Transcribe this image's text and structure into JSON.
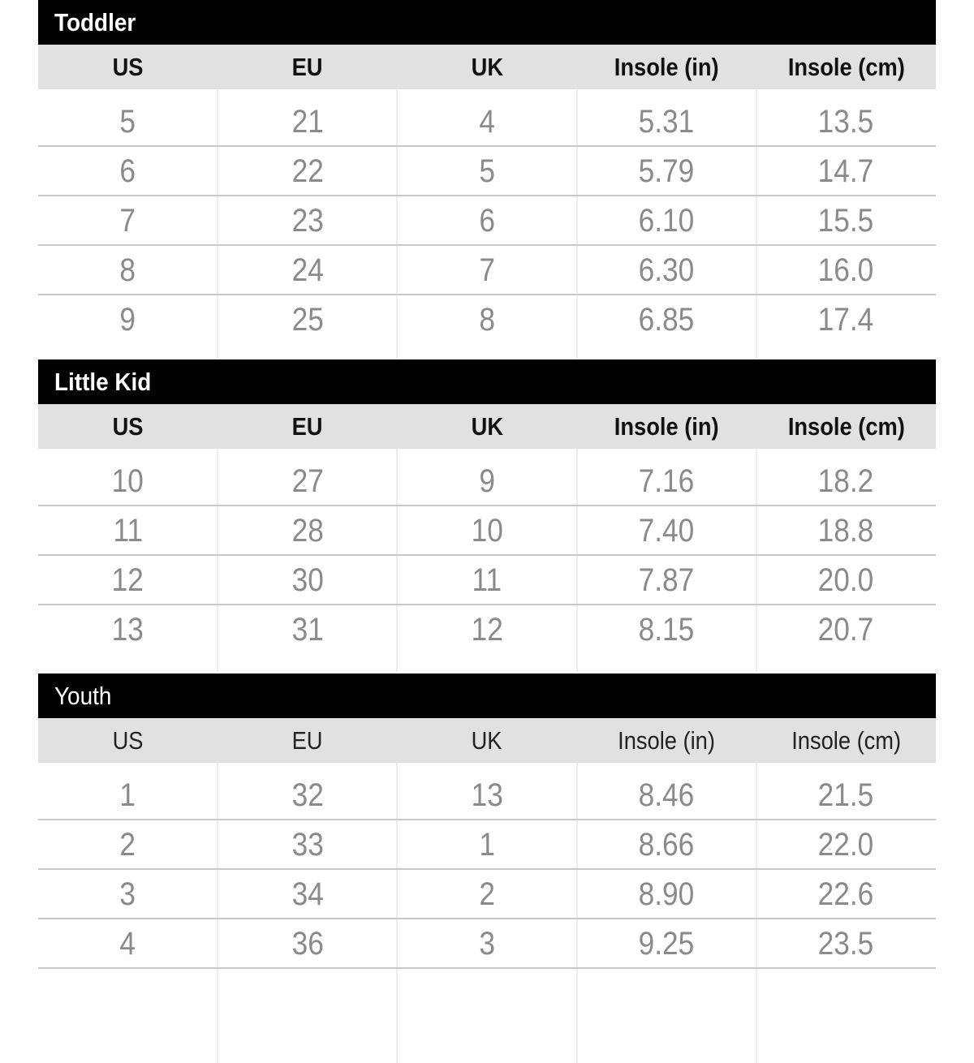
{
  "columns": [
    "US",
    "EU",
    "UK",
    "Insole (in)",
    "Insole (cm)"
  ],
  "sections": [
    {
      "title": "Toddler",
      "rows": [
        [
          "5",
          "21",
          "4",
          "5.31",
          "13.5"
        ],
        [
          "6",
          "22",
          "5",
          "5.79",
          "14.7"
        ],
        [
          "7",
          "23",
          "6",
          "6.10",
          "15.5"
        ],
        [
          "8",
          "24",
          "7",
          "6.30",
          "16.0"
        ],
        [
          "9",
          "25",
          "8",
          "6.85",
          "17.4"
        ]
      ]
    },
    {
      "title": "Little Kid",
      "rows": [
        [
          "10",
          "27",
          "9",
          "7.16",
          "18.2"
        ],
        [
          "11",
          "28",
          "10",
          "7.40",
          "18.8"
        ],
        [
          "12",
          "30",
          "11",
          "7.87",
          "20.0"
        ],
        [
          "13",
          "31",
          "12",
          "8.15",
          "20.7"
        ]
      ]
    },
    {
      "title": "Youth",
      "rows": [
        [
          "1",
          "32",
          "13",
          "8.46",
          "21.5"
        ],
        [
          "2",
          "33",
          "1",
          "8.66",
          "22.0"
        ],
        [
          "3",
          "34",
          "2",
          "8.90",
          "22.6"
        ],
        [
          "4",
          "36",
          "3",
          "9.25",
          "23.5"
        ]
      ]
    }
  ]
}
